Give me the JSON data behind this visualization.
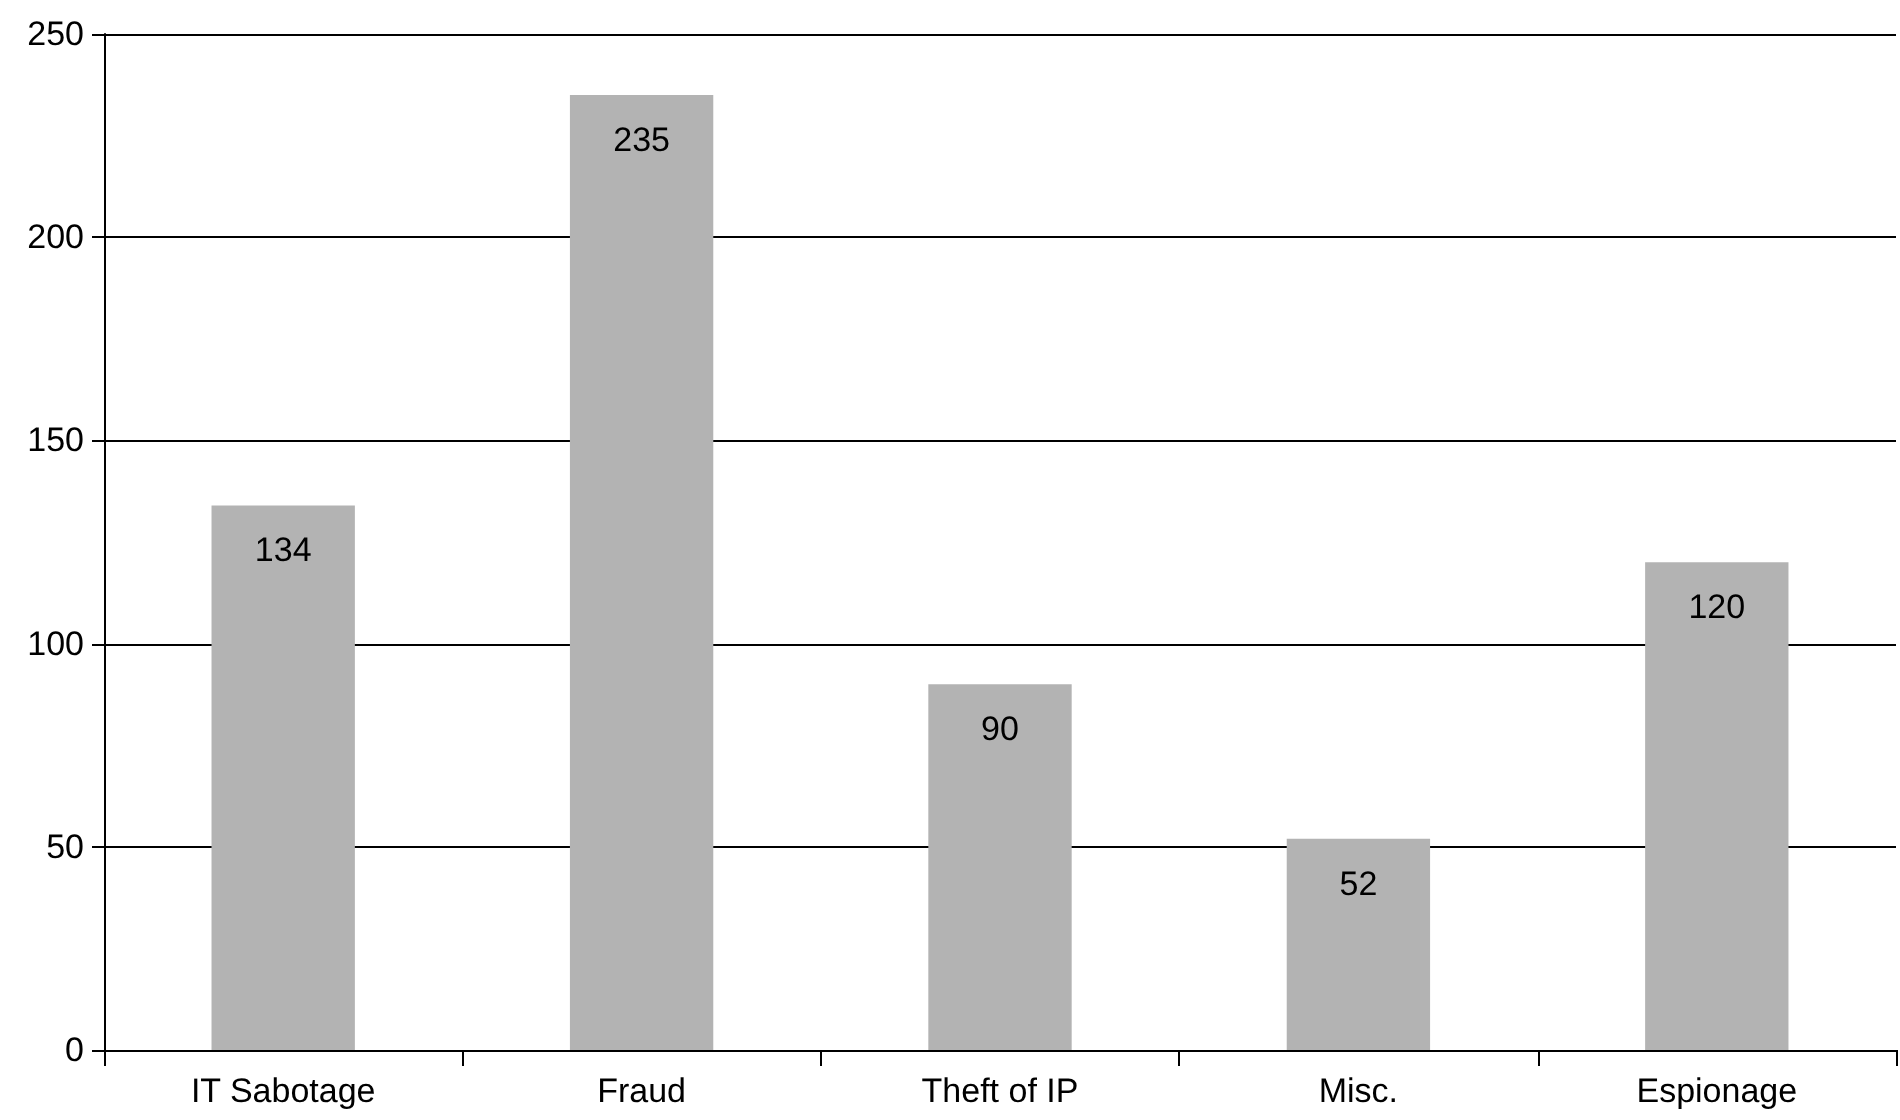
{
  "chart_data": {
    "type": "bar",
    "categories": [
      "IT Sabotage",
      "Fraud",
      "Theft of IP",
      "Misc.",
      "Espionage"
    ],
    "values": [
      134,
      235,
      90,
      52,
      120
    ],
    "color": "#b3b3b3",
    "ylim": [
      0,
      250
    ],
    "yticks": [
      0,
      50,
      100,
      150,
      200,
      250
    ],
    "grid": "y",
    "data_labels": true
  }
}
